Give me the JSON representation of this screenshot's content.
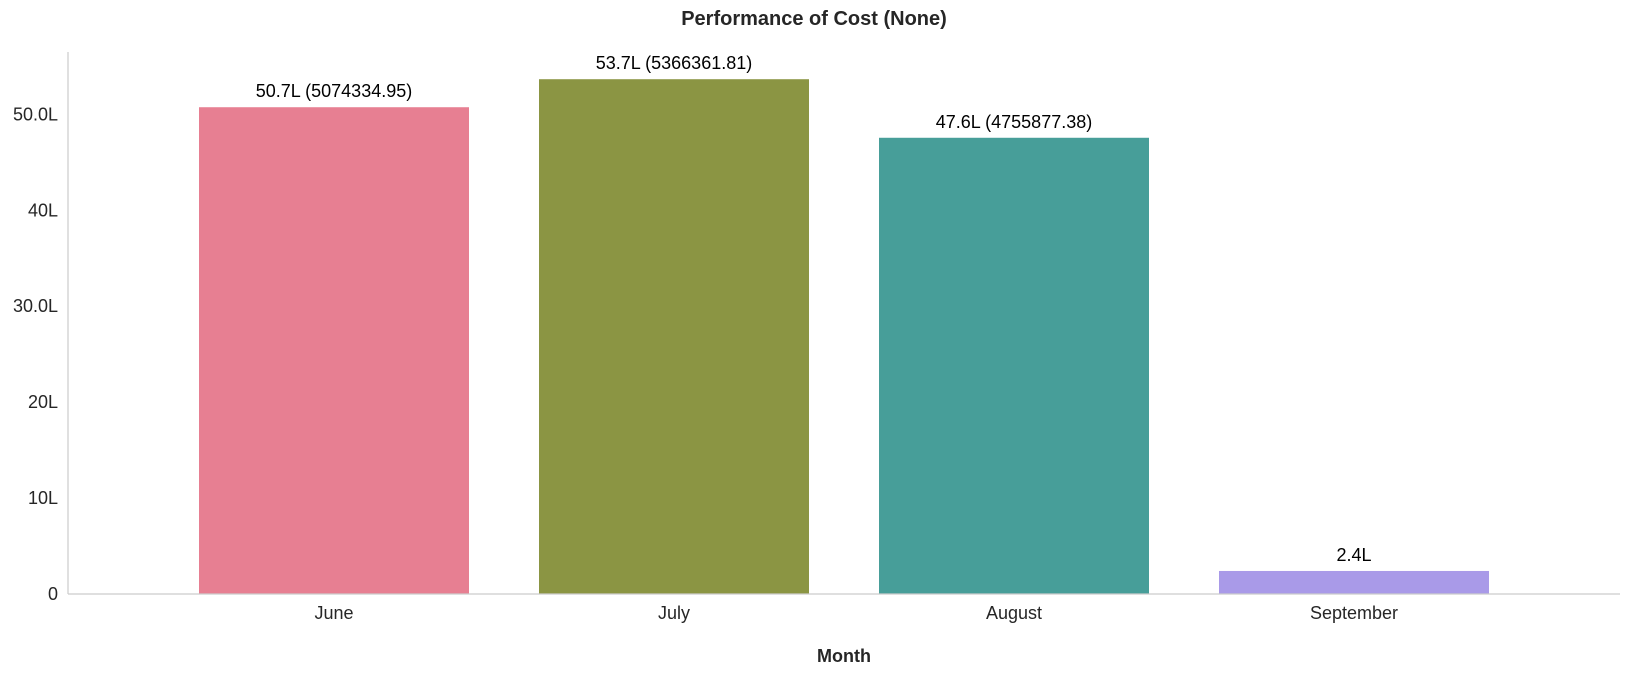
{
  "chart_data": {
    "type": "bar",
    "title": "Performance of Cost (None)",
    "xlabel": "Month",
    "ylabel": "",
    "categories": [
      "June",
      "July",
      "August",
      "September"
    ],
    "values": [
      5074334.95,
      5366361.81,
      4755877.38,
      240000
    ],
    "data_labels": [
      "50.7L (5074334.95)",
      "53.7L (5366361.81)",
      "47.6L (4755877.38)",
      "2.4L"
    ],
    "colors": [
      "#e77f92",
      "#8b9543",
      "#479e99",
      "#a99ae8"
    ],
    "yticks": [
      {
        "value": 0,
        "label": "0"
      },
      {
        "value": 1000000,
        "label": "10L"
      },
      {
        "value": 2000000,
        "label": "20L"
      },
      {
        "value": 3000000,
        "label": "30.0L"
      },
      {
        "value": 4000000,
        "label": "40L"
      },
      {
        "value": 5000000,
        "label": "50.0L"
      }
    ],
    "ylim": [
      0,
      5650000
    ],
    "grid": false,
    "legend": "none"
  }
}
